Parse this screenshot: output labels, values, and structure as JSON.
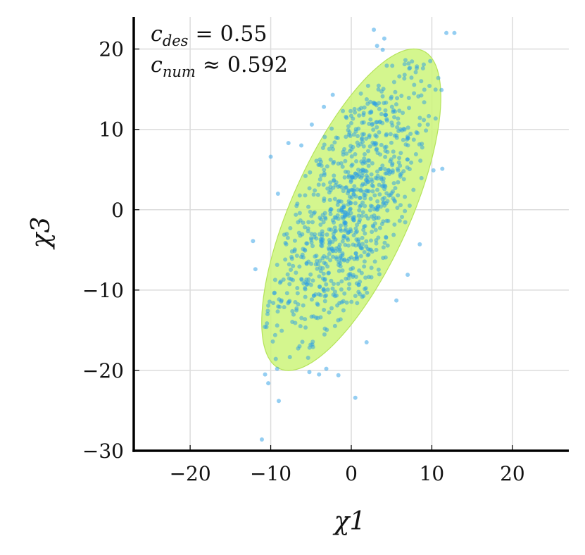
{
  "chart_data": {
    "type": "scatter",
    "xlabel": "χ1",
    "ylabel": "χ3",
    "xlim": [
      -27,
      27
    ],
    "ylim": [
      -30,
      24
    ],
    "xticks": [
      -20,
      -10,
      0,
      10,
      20
    ],
    "yticks": [
      -30,
      -20,
      -10,
      0,
      10,
      20
    ],
    "xtick_labels": [
      "−20",
      "−10",
      "0",
      "10",
      "20"
    ],
    "ytick_labels": [
      "−30",
      "−20",
      "−10",
      "0",
      "10",
      "20"
    ],
    "grid": true,
    "annotations": [
      {
        "label": "c",
        "sub": "des",
        "rel": "=",
        "value": "0.55"
      },
      {
        "label": "c",
        "sub": "num",
        "rel": "≈",
        "value": "0.592"
      }
    ],
    "ellipse": {
      "center": [
        0,
        0
      ],
      "sigma_x": 5,
      "sigma_y": 9,
      "rho": 0.7,
      "k": 2.224,
      "fill": "#ccf57a",
      "stroke": "#b5e35a"
    },
    "points_color": "#2a9ee5",
    "outliers": [
      [
        -12.2,
        -3.9
      ],
      [
        -11.9,
        -7.4
      ],
      [
        -11.1,
        -28.6
      ],
      [
        -10.7,
        -20.5
      ],
      [
        -10.3,
        -21.6
      ],
      [
        -9.2,
        -19.8
      ],
      [
        -9.0,
        -23.8
      ],
      [
        -10.0,
        6.6
      ],
      [
        -9.1,
        2.0
      ],
      [
        -7.8,
        8.3
      ],
      [
        -4.9,
        10.6
      ],
      [
        -3.4,
        12.8
      ],
      [
        -2.3,
        14.3
      ],
      [
        0.5,
        -23.4
      ],
      [
        1.9,
        -16.5
      ],
      [
        2.8,
        22.4
      ],
      [
        3.2,
        20.4
      ],
      [
        4.1,
        21.3
      ],
      [
        5.6,
        -11.3
      ],
      [
        7.0,
        -8.1
      ],
      [
        8.5,
        -4.3
      ],
      [
        8.9,
        17.6
      ],
      [
        9.5,
        10.6
      ],
      [
        10.2,
        4.9
      ],
      [
        10.8,
        16.4
      ],
      [
        11.2,
        14.9
      ],
      [
        11.3,
        5.1
      ],
      [
        11.8,
        22.0
      ],
      [
        12.8,
        22.0
      ],
      [
        -1.6,
        -20.6
      ],
      [
        -4.0,
        -20.5
      ],
      [
        -5.2,
        -20.2
      ],
      [
        -3.1,
        -19.8
      ],
      [
        3.9,
        19.9
      ],
      [
        -6.2,
        8.0
      ],
      [
        9.8,
        18.5
      ]
    ]
  }
}
